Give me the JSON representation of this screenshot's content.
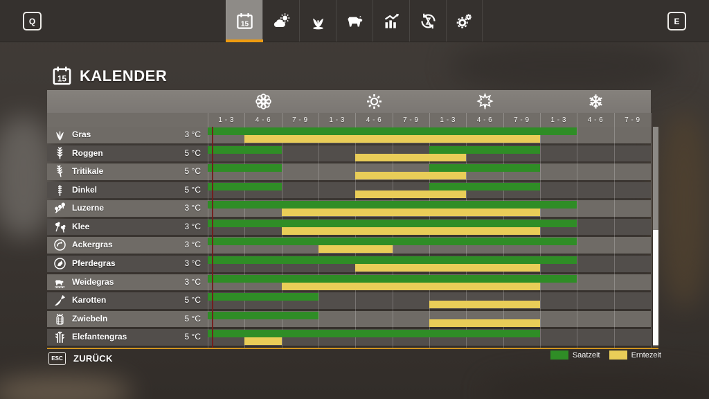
{
  "topbar": {
    "left_key": "Q",
    "right_key": "E",
    "tabs": [
      {
        "id": "calendar",
        "icon": "calendar-icon",
        "selected": true
      },
      {
        "id": "weather",
        "icon": "weather-icon",
        "selected": false
      },
      {
        "id": "crops",
        "icon": "crop-growth-icon",
        "selected": false
      },
      {
        "id": "animals",
        "icon": "animals-icon",
        "selected": false
      },
      {
        "id": "statistics",
        "icon": "statistics-icon",
        "selected": false
      },
      {
        "id": "economy",
        "icon": "economy-cycle-icon",
        "selected": false
      },
      {
        "id": "settings",
        "icon": "settings-gears-icon",
        "selected": false
      }
    ]
  },
  "title": {
    "label": "KALENDER",
    "icon": "calendar-icon"
  },
  "calendar": {
    "seasons": [
      {
        "icon": "spring-flower-icon"
      },
      {
        "icon": "summer-sun-icon"
      },
      {
        "icon": "autumn-leaf-icon"
      },
      {
        "icon": "winter-snowflake-icon"
      }
    ],
    "month_ranges": [
      "1 - 3",
      "4 - 6",
      "7 - 9"
    ],
    "columns_per_season": 3,
    "colors": {
      "sow": "#2f8d26",
      "harvest": "#e9cd58",
      "accent": "#ef9b0f",
      "day_marker": "#761a1a"
    },
    "day_marker": {
      "column": 1,
      "fraction": 0.13
    },
    "rows": [
      {
        "name": "Gras",
        "icon": "grass-icon",
        "temperature": "3 °C",
        "sow_columns": [
          [
            1,
            10
          ]
        ],
        "harvest_columns": [
          [
            2,
            9
          ]
        ]
      },
      {
        "name": "Roggen",
        "icon": "rye-icon",
        "temperature": "5 °C",
        "sow_columns": [
          [
            1,
            2
          ],
          [
            7,
            9
          ]
        ],
        "harvest_columns": [
          [
            5,
            7
          ]
        ]
      },
      {
        "name": "Tritikale",
        "icon": "triticale-icon",
        "temperature": "5 °C",
        "sow_columns": [
          [
            1,
            2
          ],
          [
            7,
            9
          ]
        ],
        "harvest_columns": [
          [
            5,
            7
          ]
        ]
      },
      {
        "name": "Dinkel",
        "icon": "spelt-icon",
        "temperature": "5 °C",
        "sow_columns": [
          [
            1,
            2
          ],
          [
            7,
            9
          ]
        ],
        "harvest_columns": [
          [
            5,
            7
          ]
        ]
      },
      {
        "name": "Luzerne",
        "icon": "lucerne-icon",
        "temperature": "3 °C",
        "sow_columns": [
          [
            1,
            10
          ]
        ],
        "harvest_columns": [
          [
            3,
            9
          ]
        ]
      },
      {
        "name": "Klee",
        "icon": "clover-icon",
        "temperature": "3 °C",
        "sow_columns": [
          [
            1,
            10
          ]
        ],
        "harvest_columns": [
          [
            3,
            9
          ]
        ]
      },
      {
        "name": "Ackergras",
        "icon": "field-grass-icon",
        "temperature": "3 °C",
        "sow_columns": [
          [
            1,
            10
          ]
        ],
        "harvest_columns": [
          [
            4,
            5
          ]
        ]
      },
      {
        "name": "Pferdegras",
        "icon": "horse-grass-icon",
        "temperature": "3 °C",
        "sow_columns": [
          [
            1,
            10
          ]
        ],
        "harvest_columns": [
          [
            5,
            9
          ]
        ]
      },
      {
        "name": "Weidegras",
        "icon": "pasture-grass-icon",
        "temperature": "3 °C",
        "sow_columns": [
          [
            1,
            10
          ]
        ],
        "harvest_columns": [
          [
            3,
            9
          ]
        ]
      },
      {
        "name": "Karotten",
        "icon": "carrot-icon",
        "temperature": "5 °C",
        "sow_columns": [
          [
            1,
            3
          ]
        ],
        "harvest_columns": [
          [
            7,
            9
          ]
        ]
      },
      {
        "name": "Zwiebeln",
        "icon": "onion-icon",
        "temperature": "5 °C",
        "sow_columns": [
          [
            1,
            3
          ]
        ],
        "harvest_columns": [
          [
            7,
            9
          ]
        ]
      },
      {
        "name": "Elefantengras",
        "icon": "elephant-grass-icon",
        "temperature": "5 °C",
        "sow_columns": [
          [
            1,
            9
          ]
        ],
        "harvest_columns": [
          [
            2,
            2
          ]
        ]
      }
    ],
    "legend": [
      {
        "label": "Saatzeit",
        "color": "#2f8d26"
      },
      {
        "label": "Erntezeit",
        "color": "#e9cd58"
      }
    ]
  },
  "footer": {
    "esc_key": "ESC",
    "back_label": "ZURÜCK"
  }
}
